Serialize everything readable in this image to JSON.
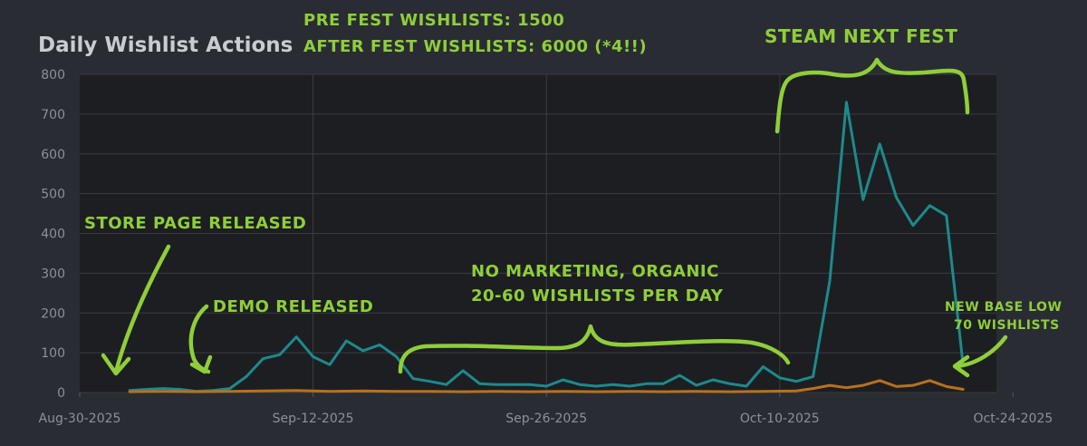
{
  "chart_data": {
    "type": "line",
    "title": "Daily Wishlist Actions",
    "ylim": [
      0,
      800
    ],
    "y_ticks": [
      "0",
      "100",
      "200",
      "300",
      "400",
      "500",
      "600",
      "700",
      "800"
    ],
    "x_tick_labels": [
      "Aug-30-2025",
      "Sep-12-2025",
      "Sep-26-2025",
      "Oct-10-2025",
      "Oct-24-2025"
    ],
    "grid": true,
    "series": [
      {
        "color": "#1d8a8c",
        "x": [
          "2025-09-02",
          "2025-09-03",
          "2025-09-04",
          "2025-09-05",
          "2025-09-06",
          "2025-09-07",
          "2025-09-08",
          "2025-09-09",
          "2025-09-10",
          "2025-09-11",
          "2025-09-12",
          "2025-09-13",
          "2025-09-14",
          "2025-09-15",
          "2025-09-16",
          "2025-09-17",
          "2025-09-18",
          "2025-09-19",
          "2025-09-20",
          "2025-09-21",
          "2025-09-22",
          "2025-09-23",
          "2025-09-24",
          "2025-09-25",
          "2025-09-26",
          "2025-09-27",
          "2025-09-28",
          "2025-09-29",
          "2025-09-30",
          "2025-10-01",
          "2025-10-02",
          "2025-10-03",
          "2025-10-04",
          "2025-10-05",
          "2025-10-06",
          "2025-10-07",
          "2025-10-08",
          "2025-10-09",
          "2025-10-10",
          "2025-10-11",
          "2025-10-12",
          "2025-10-13",
          "2025-10-14",
          "2025-10-15",
          "2025-10-16",
          "2025-10-17",
          "2025-10-18",
          "2025-10-19",
          "2025-10-20",
          "2025-10-21",
          "2025-10-22"
        ],
        "y": [
          5,
          8,
          10,
          8,
          3,
          5,
          10,
          40,
          85,
          95,
          140,
          90,
          70,
          130,
          105,
          120,
          90,
          35,
          28,
          20,
          55,
          22,
          20,
          20,
          20,
          16,
          32,
          20,
          16,
          20,
          16,
          22,
          22,
          43,
          18,
          32,
          22,
          16,
          65,
          37,
          28,
          40,
          280,
          730,
          485,
          625,
          490,
          420,
          470,
          445,
          70
        ]
      },
      {
        "color": "#b8711d",
        "x": [
          "2025-09-02",
          "2025-09-04",
          "2025-09-06",
          "2025-09-08",
          "2025-09-10",
          "2025-09-12",
          "2025-09-14",
          "2025-09-16",
          "2025-09-18",
          "2025-09-20",
          "2025-09-22",
          "2025-09-24",
          "2025-09-26",
          "2025-09-28",
          "2025-09-30",
          "2025-10-02",
          "2025-10-04",
          "2025-10-06",
          "2025-10-08",
          "2025-10-10",
          "2025-10-12",
          "2025-10-13",
          "2025-10-14",
          "2025-10-15",
          "2025-10-16",
          "2025-10-17",
          "2025-10-18",
          "2025-10-19",
          "2025-10-20",
          "2025-10-21",
          "2025-10-22"
        ],
        "y": [
          2,
          3,
          2,
          3,
          4,
          5,
          3,
          4,
          3,
          3,
          2,
          3,
          2,
          3,
          2,
          3,
          2,
          3,
          2,
          3,
          4,
          10,
          18,
          12,
          18,
          30,
          15,
          18,
          30,
          15,
          8
        ]
      }
    ],
    "annotations": {
      "pre_fest": "PRE FEST WISHLISTS: 1500",
      "after_fest": "AFTER FEST WISHLISTS: 6000 (*4!!)",
      "steam_next_fest": "STEAM NEXT FEST",
      "store_page": "STORE PAGE RELEASED",
      "demo": "DEMO RELEASED",
      "organic_1": "NO MARKETING, ORGANIC",
      "organic_2": "20-60 WISHLISTS PER DAY",
      "base_low_1": "NEW BASE LOW",
      "base_low_2": "70 WISHLISTS"
    },
    "colors": {
      "background": "#2a2c33",
      "plot_area": "#1d1e22",
      "grid": "#3a3c42",
      "annotation": "#8fce3a"
    }
  }
}
